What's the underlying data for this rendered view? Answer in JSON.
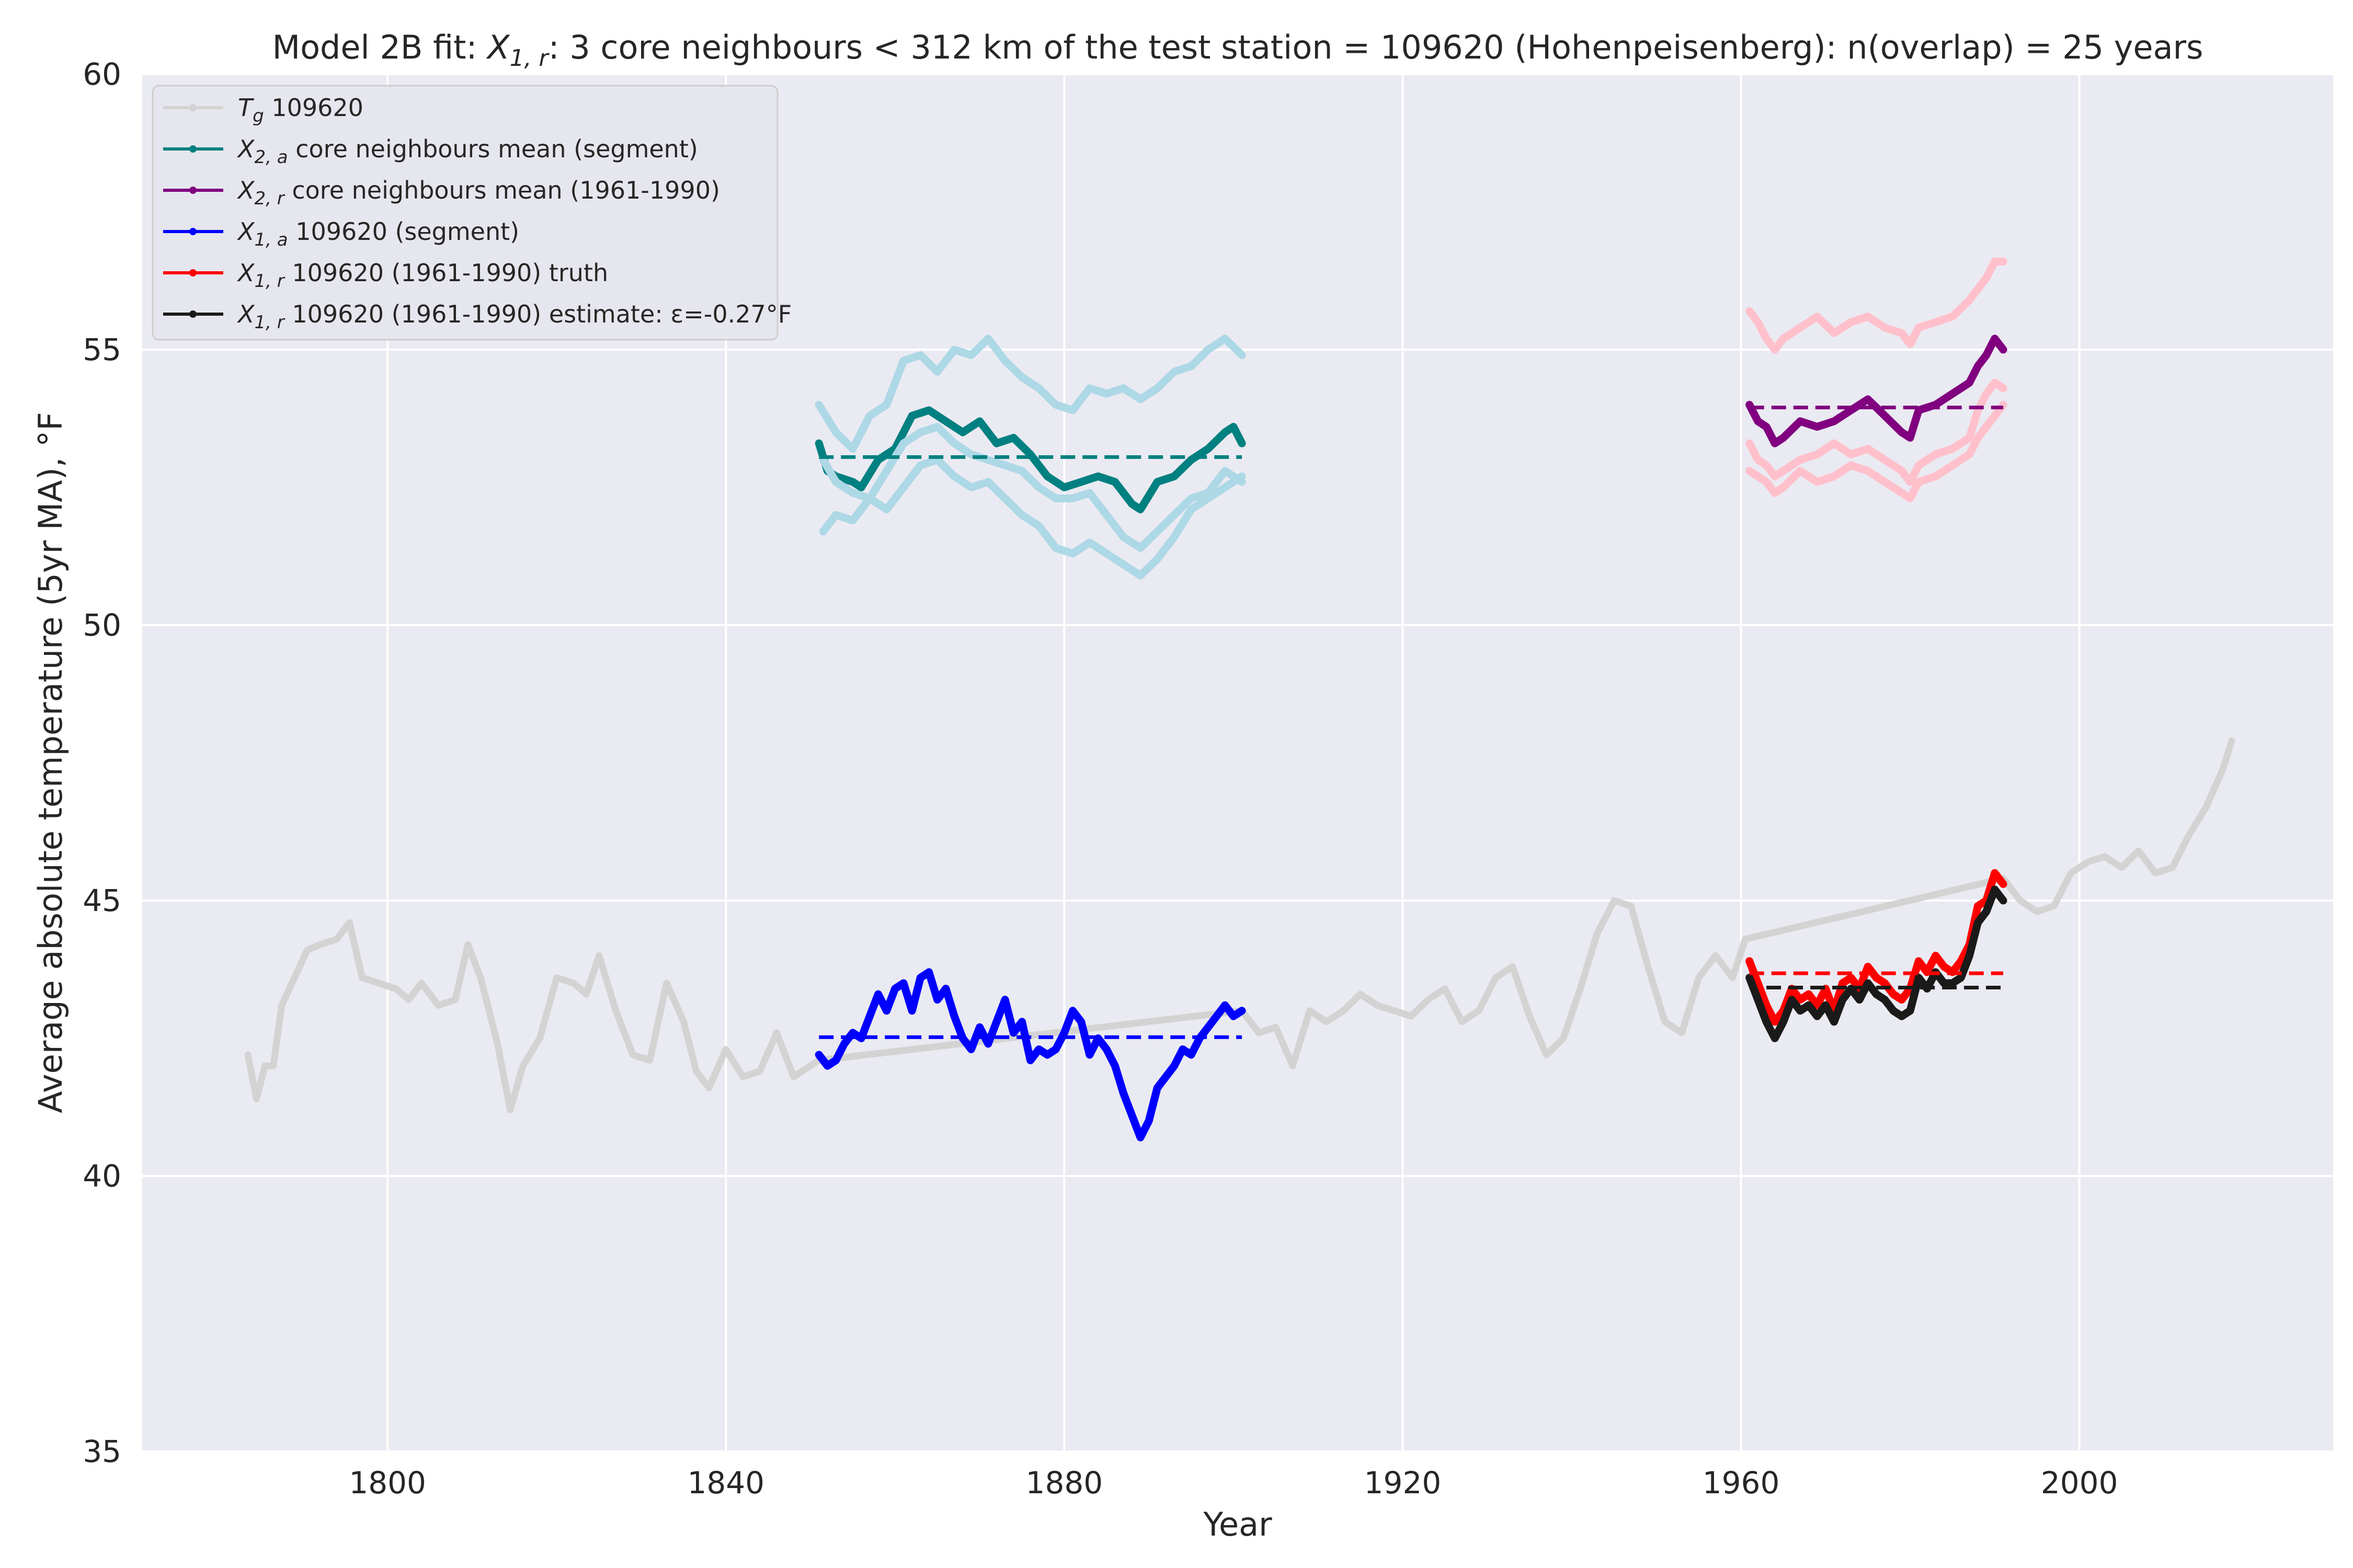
{
  "chart_data": {
    "type": "line",
    "title": "Model 2B fit: X₁,r: 3 core neighbours < 312 km of the test station = 109620 (Hohenpeisenberg): n(overlap) = 25 years",
    "title_parts": {
      "prefix": "Model 2B fit: ",
      "var": "X",
      "sub": "1, r",
      "suffix": ": 3 core neighbours < 312 km of the test station = 109620 (Hohenpeisenberg): n(overlap) = 25 years"
    },
    "xlabel": "Year",
    "ylabel": "Average absolute temperature (5yr MA), °F",
    "xlim": [
      1771,
      2030
    ],
    "ylim": [
      35,
      60
    ],
    "xticks": [
      "1800",
      "1840",
      "1880",
      "1920",
      "1960",
      "2000"
    ],
    "yticks": [
      "35",
      "40",
      "45",
      "50",
      "55",
      "60"
    ],
    "grid": true,
    "legend_position": "top-left",
    "background": "#eaeaf2",
    "legend": [
      {
        "var": "T",
        "sub": "g",
        "text": " 109620",
        "color": "#d3d3d3"
      },
      {
        "var": "X",
        "sub": "2, a",
        "text": " core neighbours mean (segment)",
        "color": "#008080"
      },
      {
        "var": "X",
        "sub": "2, r",
        "text": " core neighbours mean (1961-1990)",
        "color": "#800080"
      },
      {
        "var": "X",
        "sub": "1, a",
        "text": " 109620 (segment)",
        "color": "#0000ff"
      },
      {
        "var": "X",
        "sub": "1, r",
        "text": " 109620 (1961-1990) truth",
        "color": "#ff0000"
      },
      {
        "var": "X",
        "sub": "1, r",
        "text": " 109620 (1961-1990) estimate: ε=-0.27°F",
        "color": "#1a1a1a"
      }
    ],
    "series": [
      {
        "name": "Tg 109620",
        "color": "#d3d3d3",
        "x": [
          1783.5,
          1784.5,
          1785.5,
          1786.5,
          1787.5,
          1789,
          1790.5,
          1792,
          1794,
          1795.5,
          1797,
          1799,
          1801,
          1802.5,
          1804,
          1806,
          1808,
          1809.5,
          1811,
          1813,
          1814.5,
          1816,
          1818,
          1820,
          1822,
          1823.5,
          1825,
          1827,
          1829,
          1831,
          1833,
          1835,
          1836.5,
          1838,
          1840,
          1842,
          1844,
          1846,
          1848,
          1850,
          1851,
          1901,
          1903,
          1905,
          1907,
          1909,
          1911,
          1913,
          1915,
          1917,
          1919,
          1921,
          1923,
          1925,
          1927,
          1929,
          1931,
          1933,
          1935,
          1937,
          1939,
          1941,
          1943,
          1945,
          1947,
          1949,
          1951,
          1953,
          1955,
          1957,
          1959,
          1960.5,
          1991,
          1993,
          1995,
          1997,
          1999,
          2001,
          2003,
          2005,
          2007,
          2009,
          2011,
          2013,
          2015,
          2017,
          2018
        ],
        "y": [
          42.2,
          41.4,
          42.0,
          42.0,
          43.1,
          43.6,
          44.1,
          44.2,
          44.3,
          44.6,
          43.6,
          43.5,
          43.4,
          43.2,
          43.5,
          43.1,
          43.2,
          44.2,
          43.6,
          42.4,
          41.2,
          42.0,
          42.5,
          43.6,
          43.5,
          43.3,
          44.0,
          43.0,
          42.2,
          42.1,
          43.5,
          42.8,
          41.9,
          41.6,
          42.3,
          41.8,
          41.9,
          42.6,
          41.8,
          42.0,
          42.1,
          43.0,
          42.6,
          42.7,
          42.0,
          43.0,
          42.8,
          43.0,
          43.3,
          43.1,
          43.0,
          42.9,
          43.2,
          43.4,
          42.8,
          43.0,
          43.6,
          43.8,
          42.9,
          42.2,
          42.5,
          43.4,
          44.4,
          45.0,
          44.9,
          43.8,
          42.8,
          42.6,
          43.6,
          44.0,
          43.6,
          44.3,
          45.4,
          45.0,
          44.8,
          44.9,
          45.5,
          45.7,
          45.8,
          45.6,
          45.9,
          45.5,
          45.6,
          46.2,
          46.7,
          47.4,
          47.9
        ]
      },
      {
        "name": "X2,a core neighbours mean (segment)",
        "color": "#008080",
        "x": [
          1851,
          1852,
          1853,
          1855,
          1856,
          1858,
          1860,
          1862,
          1864,
          1866,
          1868,
          1870,
          1872,
          1874,
          1876,
          1878,
          1880,
          1882,
          1884,
          1886,
          1888,
          1889,
          1891,
          1893,
          1895,
          1897,
          1899,
          1900,
          1901
        ],
        "y": [
          53.3,
          52.8,
          52.7,
          52.6,
          52.5,
          53.0,
          53.2,
          53.8,
          53.9,
          53.7,
          53.5,
          53.7,
          53.3,
          53.4,
          53.1,
          52.7,
          52.5,
          52.6,
          52.7,
          52.6,
          52.2,
          52.1,
          52.6,
          52.7,
          53.0,
          53.2,
          53.5,
          53.6,
          53.3
        ]
      },
      {
        "name": "",
        "color": "#add8e6",
        "x": [
          1851,
          1853,
          1855,
          1857,
          1859,
          1861,
          1863,
          1865,
          1867,
          1869,
          1871,
          1873,
          1875,
          1877,
          1879,
          1881,
          1883,
          1885,
          1887,
          1889,
          1891,
          1893,
          1895,
          1897,
          1899,
          1901
        ],
        "y": [
          54.0,
          53.5,
          53.2,
          53.8,
          54.0,
          54.8,
          54.9,
          54.6,
          55.0,
          54.9,
          55.2,
          54.8,
          54.5,
          54.3,
          54.0,
          53.9,
          54.3,
          54.2,
          54.3,
          54.1,
          54.3,
          54.6,
          54.7,
          55.0,
          55.2,
          54.9
        ]
      },
      {
        "name": "",
        "color": "#add8e6",
        "x": [
          1851.5,
          1853,
          1855,
          1857,
          1859,
          1861,
          1863,
          1865,
          1867,
          1869,
          1871,
          1873,
          1875,
          1877,
          1879,
          1881,
          1883,
          1885,
          1887,
          1889,
          1891,
          1893,
          1895,
          1897,
          1899,
          1901
        ],
        "y": [
          53.0,
          52.6,
          52.4,
          52.3,
          52.8,
          53.3,
          53.5,
          53.6,
          53.3,
          53.1,
          53.0,
          52.9,
          52.8,
          52.5,
          52.3,
          52.3,
          52.4,
          52.0,
          51.6,
          51.4,
          51.7,
          52.0,
          52.3,
          52.4,
          52.8,
          52.6
        ]
      },
      {
        "name": "",
        "color": "#add8e6",
        "x": [
          1851.5,
          1853,
          1855,
          1857,
          1859,
          1861,
          1863,
          1865,
          1867,
          1869,
          1871,
          1873,
          1875,
          1877,
          1879,
          1881,
          1883,
          1885,
          1887,
          1889,
          1891,
          1893,
          1895,
          1897,
          1899,
          1901
        ],
        "y": [
          51.7,
          52.0,
          51.9,
          52.3,
          52.1,
          52.5,
          52.9,
          53.0,
          52.7,
          52.5,
          52.6,
          52.3,
          52.0,
          51.8,
          51.4,
          51.3,
          51.5,
          51.3,
          51.1,
          50.9,
          51.2,
          51.6,
          52.1,
          52.3,
          52.5,
          52.7
        ]
      },
      {
        "name": "X2,r core neighbours mean (1961-1990)",
        "color": "#800080",
        "x": [
          1961,
          1962,
          1963,
          1964,
          1965,
          1967,
          1969,
          1971,
          1973,
          1975,
          1977,
          1979,
          1980,
          1981,
          1983,
          1985,
          1987,
          1988,
          1989,
          1990,
          1991
        ],
        "y": [
          54.0,
          53.7,
          53.6,
          53.3,
          53.4,
          53.7,
          53.6,
          53.7,
          53.9,
          54.1,
          53.8,
          53.5,
          53.4,
          53.9,
          54.0,
          54.2,
          54.4,
          54.7,
          54.9,
          55.2,
          55.0
        ]
      },
      {
        "name": "",
        "color": "#ffc0cb",
        "x": [
          1961,
          1962,
          1963,
          1964,
          1965,
          1967,
          1969,
          1971,
          1973,
          1975,
          1977,
          1979,
          1980,
          1981,
          1983,
          1985,
          1987,
          1988,
          1989,
          1990,
          1991
        ],
        "y": [
          55.7,
          55.5,
          55.2,
          55.0,
          55.2,
          55.4,
          55.6,
          55.3,
          55.5,
          55.6,
          55.4,
          55.3,
          55.1,
          55.4,
          55.5,
          55.6,
          55.9,
          56.1,
          56.3,
          56.6,
          56.6
        ]
      },
      {
        "name": "",
        "color": "#ffc0cb",
        "x": [
          1961,
          1962,
          1963,
          1964,
          1965,
          1967,
          1969,
          1971,
          1973,
          1975,
          1977,
          1979,
          1980,
          1981,
          1983,
          1985,
          1987,
          1988,
          1989,
          1990,
          1991
        ],
        "y": [
          53.3,
          53.0,
          52.9,
          52.7,
          52.8,
          53.0,
          53.1,
          53.3,
          53.1,
          53.2,
          53.0,
          52.8,
          52.6,
          52.9,
          53.1,
          53.2,
          53.4,
          53.9,
          54.2,
          54.4,
          54.3
        ]
      },
      {
        "name": "",
        "color": "#ffc0cb",
        "x": [
          1961,
          1962,
          1963,
          1964,
          1965,
          1967,
          1969,
          1971,
          1973,
          1975,
          1977,
          1979,
          1980,
          1981,
          1983,
          1985,
          1987,
          1988,
          1989,
          1990,
          1991
        ],
        "y": [
          52.8,
          52.7,
          52.6,
          52.4,
          52.5,
          52.8,
          52.6,
          52.7,
          52.9,
          52.8,
          52.6,
          52.4,
          52.3,
          52.6,
          52.7,
          52.9,
          53.1,
          53.4,
          53.6,
          53.8,
          54.0
        ]
      },
      {
        "name": "X1,a 109620 (segment)",
        "color": "#0000ff",
        "x": [
          1851,
          1852,
          1853,
          1854,
          1855,
          1856,
          1857,
          1858,
          1859,
          1860,
          1861,
          1862,
          1863,
          1864,
          1865,
          1866,
          1867,
          1868,
          1869,
          1870,
          1871,
          1872,
          1873,
          1874,
          1875,
          1876,
          1877,
          1878,
          1879,
          1880,
          1881,
          1882,
          1883,
          1884,
          1885,
          1886,
          1887,
          1888,
          1889,
          1890,
          1891,
          1892,
          1893,
          1894,
          1895,
          1896,
          1897,
          1898,
          1899,
          1900,
          1901
        ],
        "y": [
          42.2,
          42.0,
          42.1,
          42.4,
          42.6,
          42.5,
          42.9,
          43.3,
          43.0,
          43.4,
          43.5,
          43.0,
          43.6,
          43.7,
          43.2,
          43.4,
          42.9,
          42.5,
          42.3,
          42.7,
          42.4,
          42.8,
          43.2,
          42.6,
          42.8,
          42.1,
          42.3,
          42.2,
          42.3,
          42.6,
          43.0,
          42.8,
          42.2,
          42.5,
          42.3,
          42.0,
          41.5,
          41.1,
          40.7,
          41.0,
          41.6,
          41.8,
          42.0,
          42.3,
          42.2,
          42.5,
          42.7,
          42.9,
          43.1,
          42.9,
          43.0
        ]
      },
      {
        "name": "X1,r 109620 (1961-1990) truth",
        "color": "#ff0000",
        "x": [
          1961,
          1962,
          1963,
          1964,
          1965,
          1966,
          1967,
          1968,
          1969,
          1970,
          1971,
          1972,
          1973,
          1974,
          1975,
          1976,
          1977,
          1978,
          1979,
          1980,
          1981,
          1982,
          1983,
          1984,
          1985,
          1986,
          1987,
          1988,
          1989,
          1990,
          1991
        ],
        "y": [
          43.9,
          43.5,
          43.1,
          42.8,
          43.0,
          43.4,
          43.2,
          43.3,
          43.1,
          43.4,
          43.0,
          43.5,
          43.6,
          43.4,
          43.8,
          43.6,
          43.5,
          43.3,
          43.2,
          43.4,
          43.9,
          43.7,
          44.0,
          43.8,
          43.7,
          43.9,
          44.2,
          44.9,
          45.0,
          45.5,
          45.3
        ]
      },
      {
        "name": "X1,r 109620 (1961-1990) estimate",
        "color": "#1a1a1a",
        "x": [
          1961,
          1962,
          1963,
          1964,
          1965,
          1966,
          1967,
          1968,
          1969,
          1970,
          1971,
          1972,
          1973,
          1974,
          1975,
          1976,
          1977,
          1978,
          1979,
          1980,
          1981,
          1982,
          1983,
          1984,
          1985,
          1986,
          1987,
          1988,
          1989,
          1990,
          1991
        ],
        "y": [
          43.6,
          43.2,
          42.8,
          42.5,
          42.8,
          43.2,
          43.0,
          43.1,
          42.9,
          43.1,
          42.8,
          43.2,
          43.4,
          43.2,
          43.5,
          43.3,
          43.2,
          43.0,
          42.9,
          43.0,
          43.6,
          43.4,
          43.7,
          43.5,
          43.5,
          43.6,
          44.0,
          44.6,
          44.8,
          45.2,
          45.0
        ]
      }
    ],
    "reference_lines": [
      {
        "x": [
          1851,
          1901
        ],
        "y": 53.05,
        "color": "#008080"
      },
      {
        "x": [
          1961,
          1991
        ],
        "y": 53.95,
        "color": "#800080"
      },
      {
        "x": [
          1851,
          1901
        ],
        "y": 42.52,
        "color": "#0000ff"
      },
      {
        "x": [
          1961,
          1991
        ],
        "y": 43.68,
        "color": "#ff0000"
      },
      {
        "x": [
          1963,
          1991
        ],
        "y": 43.42,
        "color": "#1a1a1a"
      }
    ]
  }
}
